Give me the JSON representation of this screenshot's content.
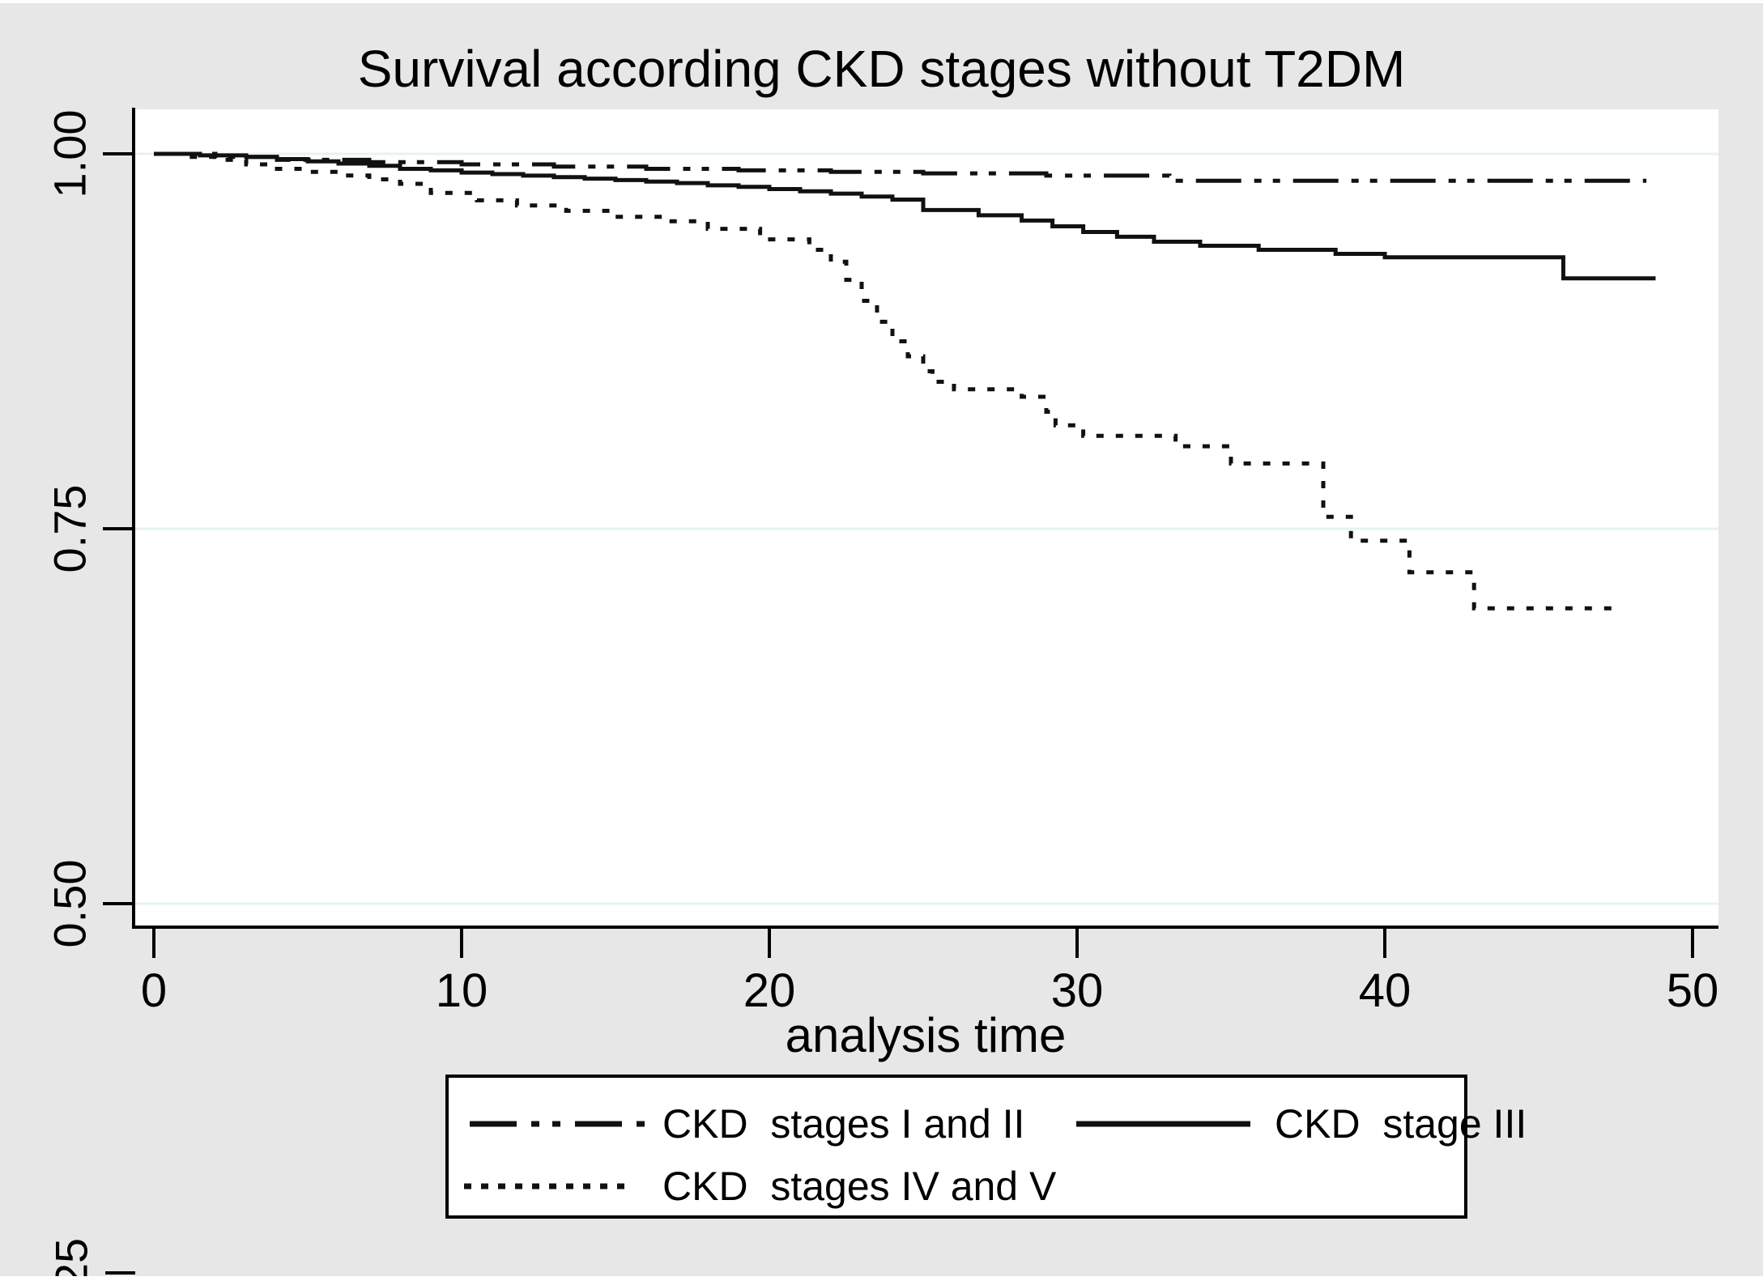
{
  "figure": {
    "title": "Survival according CKD stages without T2DM",
    "xlabel": "analysis time",
    "partial_bottom_axis_label": "25"
  },
  "legend": {
    "position": "below-chart",
    "items": [
      {
        "label": "CKD  stages I and II",
        "line_style": "dashdot"
      },
      {
        "label": "CKD  stage III",
        "line_style": "solid"
      },
      {
        "label": "CKD  stages IV and V",
        "line_style": "dotted"
      }
    ]
  },
  "colors": {
    "background": "#e7e7e7",
    "plot_background": "#ffffff",
    "gridline": "#e6f2f4",
    "line": "#111111",
    "text": "#000000"
  },
  "chart_data": {
    "type": "line",
    "subtype": "kaplan_meier_step",
    "title": "Survival according CKD stages without T2DM",
    "xlabel": "analysis time",
    "ylabel": "",
    "x_ticks": [
      0,
      10,
      20,
      30,
      40,
      50
    ],
    "y_ticks": [
      1.0,
      0.75,
      0.5
    ],
    "y_tick_labels": [
      "1.00",
      "0.75",
      "0.50"
    ],
    "xlim": [
      0,
      51
    ],
    "ylim": [
      0.484,
      1.03
    ],
    "grid": "horizontal-only",
    "legend_position": "below",
    "series": [
      {
        "name": "CKD  stages I and II",
        "line_style": "dashdot",
        "points": [
          [
            0,
            1.0
          ],
          [
            2,
            0.998
          ],
          [
            4,
            0.996
          ],
          [
            7,
            0.9945
          ],
          [
            10,
            0.993
          ],
          [
            13,
            0.9915
          ],
          [
            16,
            0.99
          ],
          [
            19,
            0.989
          ],
          [
            22,
            0.988
          ],
          [
            25,
            0.987
          ],
          [
            29,
            0.9855
          ],
          [
            33,
            0.982
          ],
          [
            48.5,
            0.982
          ]
        ]
      },
      {
        "name": "CKD  stage III",
        "line_style": "solid",
        "points": [
          [
            0,
            1.0
          ],
          [
            1.5,
            0.999
          ],
          [
            3,
            0.998
          ],
          [
            4,
            0.9965
          ],
          [
            5,
            0.995
          ],
          [
            6,
            0.9935
          ],
          [
            7,
            0.992
          ],
          [
            8,
            0.99
          ],
          [
            9,
            0.989
          ],
          [
            10,
            0.9875
          ],
          [
            11,
            0.9865
          ],
          [
            12,
            0.9855
          ],
          [
            13,
            0.9845
          ],
          [
            14,
            0.9835
          ],
          [
            15,
            0.9825
          ],
          [
            16,
            0.9815
          ],
          [
            17,
            0.9805
          ],
          [
            18,
            0.979
          ],
          [
            19,
            0.978
          ],
          [
            20,
            0.9765
          ],
          [
            21,
            0.975
          ],
          [
            22,
            0.9735
          ],
          [
            23,
            0.9715
          ],
          [
            24,
            0.9695
          ],
          [
            25,
            0.9625
          ],
          [
            26.8,
            0.959
          ],
          [
            28.2,
            0.9555
          ],
          [
            29.2,
            0.9517
          ],
          [
            30.2,
            0.9479
          ],
          [
            31.3,
            0.9447
          ],
          [
            32.5,
            0.9414
          ],
          [
            34,
            0.9387
          ],
          [
            35.9,
            0.936
          ],
          [
            38.4,
            0.9333
          ],
          [
            40,
            0.931
          ],
          [
            45.8,
            0.917
          ],
          [
            48.8,
            0.917
          ]
        ]
      },
      {
        "name": "CKD  stages IV and V",
        "line_style": "dotted",
        "points": [
          [
            0,
            1.0
          ],
          [
            1,
            0.998
          ],
          [
            2,
            0.996
          ],
          [
            3,
            0.993
          ],
          [
            4,
            0.99
          ],
          [
            5,
            0.988
          ],
          [
            6,
            0.9856
          ],
          [
            7,
            0.983
          ],
          [
            8,
            0.98
          ],
          [
            9,
            0.974
          ],
          [
            10.5,
            0.969
          ],
          [
            11.8,
            0.9656
          ],
          [
            13.4,
            0.962
          ],
          [
            15,
            0.958
          ],
          [
            16.6,
            0.955
          ],
          [
            18,
            0.95
          ],
          [
            19.7,
            0.943
          ],
          [
            21.3,
            0.936
          ],
          [
            22,
            0.928
          ],
          [
            22.5,
            0.916
          ],
          [
            23,
            0.902
          ],
          [
            23.5,
            0.888
          ],
          [
            24,
            0.875
          ],
          [
            24.5,
            0.865
          ],
          [
            25,
            0.855
          ],
          [
            25.3,
            0.848
          ],
          [
            26,
            0.843
          ],
          [
            28.2,
            0.838
          ],
          [
            29,
            0.828
          ],
          [
            29.3,
            0.819
          ],
          [
            30.2,
            0.812
          ],
          [
            33.2,
            0.805
          ],
          [
            35,
            0.7935
          ],
          [
            38,
            0.758
          ],
          [
            38.9,
            0.742
          ],
          [
            40.8,
            0.721
          ],
          [
            42.9,
            0.697
          ],
          [
            47.7,
            0.697
          ]
        ]
      }
    ]
  }
}
